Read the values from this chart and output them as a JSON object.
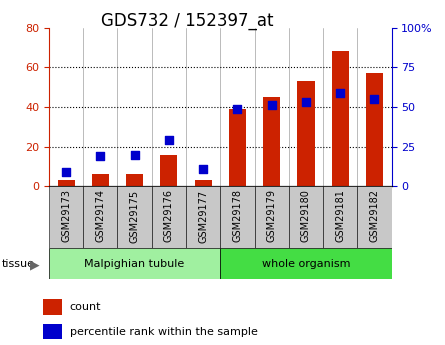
{
  "title": "GDS732 / 152397_at",
  "samples": [
    "GSM29173",
    "GSM29174",
    "GSM29175",
    "GSM29176",
    "GSM29177",
    "GSM29178",
    "GSM29179",
    "GSM29180",
    "GSM29181",
    "GSM29182"
  ],
  "counts": [
    3,
    6,
    6,
    16,
    3,
    39,
    45,
    53,
    68,
    57
  ],
  "percentile": [
    9,
    19,
    20,
    29,
    11,
    49,
    51,
    53,
    59,
    55
  ],
  "tissue_groups": [
    {
      "label": "Malpighian tubule",
      "start": 0,
      "end": 5,
      "color": "#a0f0a0"
    },
    {
      "label": "whole organism",
      "start": 5,
      "end": 10,
      "color": "#44dd44"
    }
  ],
  "bar_color": "#cc2200",
  "dot_color": "#0000cc",
  "left_ylim": [
    0,
    80
  ],
  "right_ylim": [
    0,
    100
  ],
  "left_yticks": [
    0,
    20,
    40,
    60,
    80
  ],
  "right_yticks": [
    0,
    25,
    50,
    75,
    100
  ],
  "right_yticklabels": [
    "0",
    "25",
    "50",
    "75",
    "100%"
  ],
  "left_color": "#cc2200",
  "right_color": "#0000cc",
  "grid_color": "#000000",
  "bg_color": "#ffffff",
  "plot_bg": "#ffffff",
  "bar_width": 0.5,
  "dot_size": 35,
  "legend_count_label": "count",
  "legend_pct_label": "percentile rank within the sample",
  "tissue_label": "tissue",
  "xtick_bg": "#c8c8c8",
  "xtick_fontsize": 7,
  "title_fontsize": 12
}
